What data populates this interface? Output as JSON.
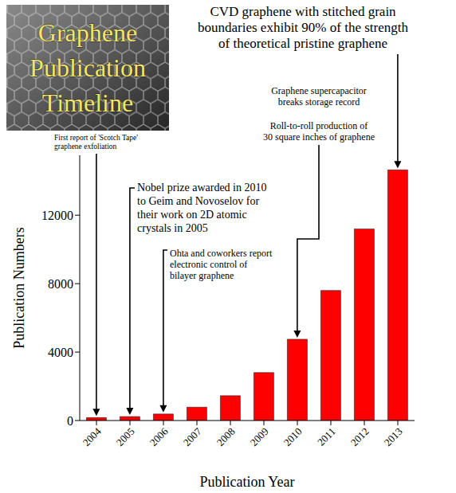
{
  "chart_data": {
    "type": "bar",
    "title": "Graphene Publication Timeline",
    "x_label": "Publication Year",
    "y_label": "Publication Numbers",
    "categories": [
      "2004",
      "2005",
      "2006",
      "2007",
      "2008",
      "2009",
      "2010",
      "2011",
      "2012",
      "2013"
    ],
    "values": [
      170,
      230,
      380,
      780,
      1450,
      2800,
      4750,
      7600,
      11200,
      14650
    ],
    "color": "#ff0000",
    "ylim": [
      0,
      15500
    ],
    "yticks": [
      0,
      4000,
      8000,
      12000
    ],
    "grid": false,
    "annotations": [
      {
        "texts": [
          "First report of 'Scotch Tape' graphene exfoliation"
        ],
        "category": "2004"
      },
      {
        "texts": [
          "Nobel prize awarded in 2010 to Geim and Novoselov for their work on 2D atomic crystals in 2005"
        ],
        "category": "2005"
      },
      {
        "texts": [
          "Ohta and coworkers report electronic control of bilayer graphene"
        ],
        "category": "2006"
      },
      {
        "texts": [
          "Graphene supercapacitor breaks storage record",
          "Roll-to-roll production of 30 square inches of graphene"
        ],
        "category": "2010"
      },
      {
        "texts": [
          "CVD graphene with stitched grain boundaries exhibit 90% of the strength of theoretical pristine graphene"
        ],
        "category": "2013"
      }
    ]
  }
}
